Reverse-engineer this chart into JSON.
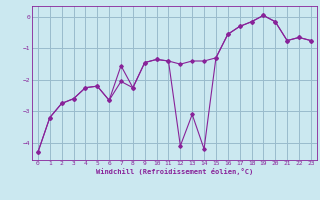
{
  "xlabel": "Windchill (Refroidissement éolien,°C)",
  "bg_color": "#cbe8f0",
  "line_color": "#882299",
  "grid_color": "#99bbcc",
  "xlim": [
    -0.5,
    23.5
  ],
  "ylim": [
    -4.55,
    0.35
  ],
  "xticks": [
    0,
    1,
    2,
    3,
    4,
    5,
    6,
    7,
    8,
    9,
    10,
    11,
    12,
    13,
    14,
    15,
    16,
    17,
    18,
    19,
    20,
    21,
    22,
    23
  ],
  "yticks": [
    0,
    -1,
    -2,
    -3,
    -4
  ],
  "series1_x": [
    0,
    1,
    2,
    3,
    4,
    5,
    6,
    7,
    8,
    9,
    10,
    11,
    12,
    13,
    14,
    15,
    16,
    17,
    18,
    19,
    20,
    21,
    22,
    23
  ],
  "series1_y": [
    -4.3,
    -3.2,
    -2.75,
    -2.6,
    -2.25,
    -2.2,
    -2.65,
    -1.55,
    -2.25,
    -1.45,
    -1.35,
    -1.4,
    -4.1,
    -3.1,
    -4.2,
    -1.3,
    -0.55,
    -0.3,
    -0.15,
    0.05,
    -0.15,
    -0.75,
    -0.65,
    -0.75
  ],
  "series2_x": [
    0,
    1,
    2,
    3,
    4,
    5,
    6,
    7,
    8,
    9,
    10,
    11,
    12,
    13,
    14,
    15,
    16,
    17,
    18,
    19,
    20,
    21,
    22,
    23
  ],
  "series2_y": [
    -4.3,
    -3.2,
    -2.75,
    -2.6,
    -2.25,
    -2.2,
    -2.65,
    -2.05,
    -2.25,
    -1.45,
    -1.35,
    -1.4,
    -1.5,
    -1.4,
    -1.4,
    -1.3,
    -0.55,
    -0.3,
    -0.15,
    0.05,
    -0.15,
    -0.75,
    -0.65,
    -0.75
  ]
}
